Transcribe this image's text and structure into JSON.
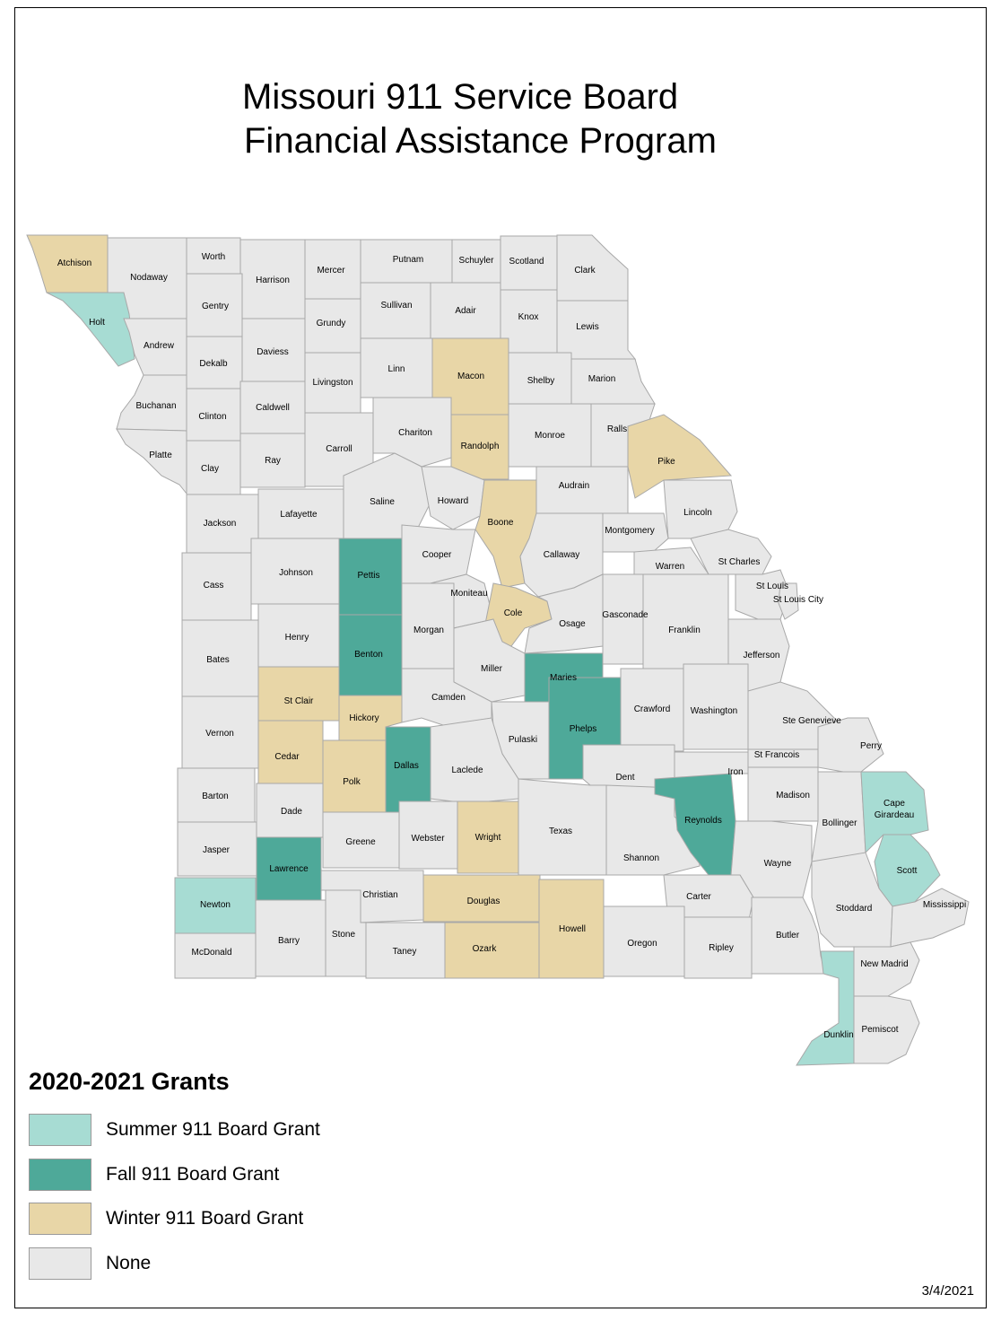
{
  "title": {
    "line1": "Missouri 911 Service Board",
    "line2": "Financial Assistance Program"
  },
  "legend": {
    "title": "2020-2021 Grants",
    "items": [
      {
        "key": "summer",
        "label": "Summer 911 Board Grant",
        "color": "#a7dcd3"
      },
      {
        "key": "fall",
        "label": "Fall 911 Board Grant",
        "color": "#4ea999"
      },
      {
        "key": "winter",
        "label": "Winter 911 Board Grant",
        "color": "#e8d6a7"
      },
      {
        "key": "none",
        "label": "None",
        "color": "#e8e8e8"
      }
    ]
  },
  "date": "3/4/2021",
  "counties": [
    {
      "name": "Atchison",
      "grant": "winter"
    },
    {
      "name": "Nodaway",
      "grant": "none"
    },
    {
      "name": "Worth",
      "grant": "none"
    },
    {
      "name": "Harrison",
      "grant": "none"
    },
    {
      "name": "Mercer",
      "grant": "none"
    },
    {
      "name": "Putnam",
      "grant": "none"
    },
    {
      "name": "Schuyler",
      "grant": "none"
    },
    {
      "name": "Scotland",
      "grant": "none"
    },
    {
      "name": "Clark",
      "grant": "none"
    },
    {
      "name": "Holt",
      "grant": "summer"
    },
    {
      "name": "Andrew",
      "grant": "none"
    },
    {
      "name": "Gentry",
      "grant": "none"
    },
    {
      "name": "Daviess",
      "grant": "none"
    },
    {
      "name": "Grundy",
      "grant": "none"
    },
    {
      "name": "Sullivan",
      "grant": "none"
    },
    {
      "name": "Adair",
      "grant": "none"
    },
    {
      "name": "Knox",
      "grant": "none"
    },
    {
      "name": "Lewis",
      "grant": "none"
    },
    {
      "name": "Dekalb",
      "grant": "none"
    },
    {
      "name": "Buchanan",
      "grant": "none"
    },
    {
      "name": "Clinton",
      "grant": "none"
    },
    {
      "name": "Caldwell",
      "grant": "none"
    },
    {
      "name": "Livingston",
      "grant": "none"
    },
    {
      "name": "Linn",
      "grant": "none"
    },
    {
      "name": "Macon",
      "grant": "winter"
    },
    {
      "name": "Shelby",
      "grant": "none"
    },
    {
      "name": "Marion",
      "grant": "none"
    },
    {
      "name": "Platte",
      "grant": "none"
    },
    {
      "name": "Clay",
      "grant": "none"
    },
    {
      "name": "Ray",
      "grant": "none"
    },
    {
      "name": "Carroll",
      "grant": "none"
    },
    {
      "name": "Chariton",
      "grant": "none"
    },
    {
      "name": "Randolph",
      "grant": "winter"
    },
    {
      "name": "Monroe",
      "grant": "none"
    },
    {
      "name": "Ralls",
      "grant": "none"
    },
    {
      "name": "Pike",
      "grant": "winter"
    },
    {
      "name": "Jackson",
      "grant": "none"
    },
    {
      "name": "Lafayette",
      "grant": "none"
    },
    {
      "name": "Saline",
      "grant": "none"
    },
    {
      "name": "Howard",
      "grant": "none"
    },
    {
      "name": "Boone",
      "grant": "winter"
    },
    {
      "name": "Audrain",
      "grant": "none"
    },
    {
      "name": "Lincoln",
      "grant": "none"
    },
    {
      "name": "Montgomery",
      "grant": "none"
    },
    {
      "name": "Cass",
      "grant": "none"
    },
    {
      "name": "Johnson",
      "grant": "none"
    },
    {
      "name": "Pettis",
      "grant": "fall"
    },
    {
      "name": "Cooper",
      "grant": "none"
    },
    {
      "name": "Callaway",
      "grant": "none"
    },
    {
      "name": "Warren",
      "grant": "none"
    },
    {
      "name": "St Charles",
      "grant": "none"
    },
    {
      "name": "St Louis",
      "grant": "none"
    },
    {
      "name": "St Louis City",
      "grant": "none"
    },
    {
      "name": "Moniteau",
      "grant": "none"
    },
    {
      "name": "Cole",
      "grant": "winter"
    },
    {
      "name": "Osage",
      "grant": "none"
    },
    {
      "name": "Gasconade",
      "grant": "none"
    },
    {
      "name": "Franklin",
      "grant": "none"
    },
    {
      "name": "Bates",
      "grant": "none"
    },
    {
      "name": "Henry",
      "grant": "none"
    },
    {
      "name": "Benton",
      "grant": "fall"
    },
    {
      "name": "Morgan",
      "grant": "none"
    },
    {
      "name": "Miller",
      "grant": "none"
    },
    {
      "name": "Maries",
      "grant": "fall"
    },
    {
      "name": "Jefferson",
      "grant": "none"
    },
    {
      "name": "Vernon",
      "grant": "none"
    },
    {
      "name": "St Clair",
      "grant": "winter"
    },
    {
      "name": "Hickory",
      "grant": "winter"
    },
    {
      "name": "Camden",
      "grant": "none"
    },
    {
      "name": "Pulaski",
      "grant": "none"
    },
    {
      "name": "Phelps",
      "grant": "fall"
    },
    {
      "name": "Crawford",
      "grant": "none"
    },
    {
      "name": "Washington",
      "grant": "none"
    },
    {
      "name": "Ste Genevieve",
      "grant": "none"
    },
    {
      "name": "St Francois",
      "grant": "none"
    },
    {
      "name": "Perry",
      "grant": "none"
    },
    {
      "name": "Barton",
      "grant": "none"
    },
    {
      "name": "Cedar",
      "grant": "winter"
    },
    {
      "name": "Polk",
      "grant": "winter"
    },
    {
      "name": "Dallas",
      "grant": "fall"
    },
    {
      "name": "Laclede",
      "grant": "none"
    },
    {
      "name": "Dent",
      "grant": "none"
    },
    {
      "name": "Iron",
      "grant": "none"
    },
    {
      "name": "Madison",
      "grant": "none"
    },
    {
      "name": "Bollinger",
      "grant": "none"
    },
    {
      "name": "Cape Girardeau",
      "grant": "summer"
    },
    {
      "name": "Jasper",
      "grant": "none"
    },
    {
      "name": "Dade",
      "grant": "none"
    },
    {
      "name": "Greene",
      "grant": "none"
    },
    {
      "name": "Webster",
      "grant": "none"
    },
    {
      "name": "Wright",
      "grant": "winter"
    },
    {
      "name": "Texas",
      "grant": "none"
    },
    {
      "name": "Shannon",
      "grant": "none"
    },
    {
      "name": "Reynolds",
      "grant": "fall"
    },
    {
      "name": "Wayne",
      "grant": "none"
    },
    {
      "name": "Scott",
      "grant": "summer"
    },
    {
      "name": "Newton",
      "grant": "summer"
    },
    {
      "name": "Lawrence",
      "grant": "fall"
    },
    {
      "name": "Christian",
      "grant": "none"
    },
    {
      "name": "Douglas",
      "grant": "winter"
    },
    {
      "name": "Carter",
      "grant": "none"
    },
    {
      "name": "Stoddard",
      "grant": "none"
    },
    {
      "name": "Mississippi",
      "grant": "none"
    },
    {
      "name": "McDonald",
      "grant": "none"
    },
    {
      "name": "Barry",
      "grant": "none"
    },
    {
      "name": "Stone",
      "grant": "none"
    },
    {
      "name": "Taney",
      "grant": "none"
    },
    {
      "name": "Ozark",
      "grant": "winter"
    },
    {
      "name": "Howell",
      "grant": "winter"
    },
    {
      "name": "Oregon",
      "grant": "none"
    },
    {
      "name": "Ripley",
      "grant": "none"
    },
    {
      "name": "Butler",
      "grant": "none"
    },
    {
      "name": "New Madrid",
      "grant": "none"
    },
    {
      "name": "Dunklin",
      "grant": "summer"
    },
    {
      "name": "Pemiscot",
      "grant": "none"
    }
  ]
}
